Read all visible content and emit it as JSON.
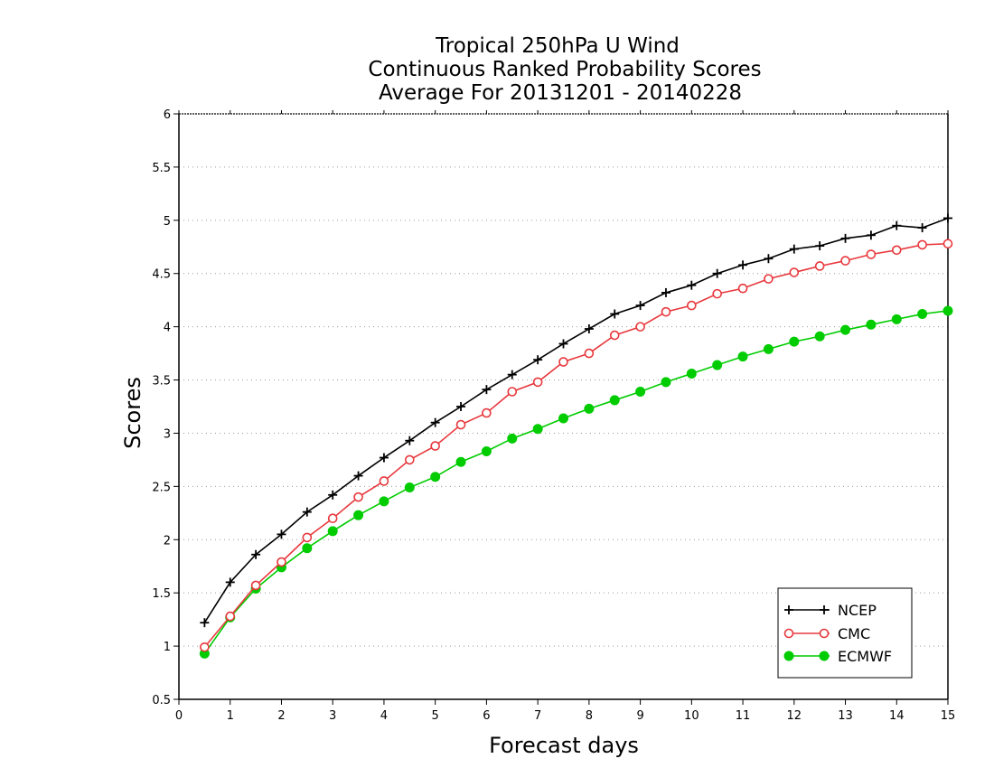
{
  "chart_data": {
    "type": "line",
    "title_lines": [
      "Tropical 250hPa U Wind",
      "Continuous Ranked Probability Scores",
      "Average For 20131201 - 20140228"
    ],
    "xlabel": "Forecast days",
    "ylabel": "Scores",
    "xlim": [
      0,
      15
    ],
    "ylim": [
      0.5,
      6
    ],
    "xticks": [
      0,
      1,
      2,
      3,
      4,
      5,
      6,
      7,
      8,
      9,
      10,
      11,
      12,
      13,
      14,
      15
    ],
    "yticks": [
      0.5,
      1,
      1.5,
      2,
      2.5,
      3,
      3.5,
      4,
      4.5,
      5,
      5.5,
      6
    ],
    "ytick_labels": [
      "0.5",
      "1",
      "1.5",
      "2",
      "2.5",
      "3",
      "3.5",
      "4",
      "4.5",
      "5",
      "5.5",
      "6"
    ],
    "grid": "horizontal dotted",
    "legend_position": "bottom-right",
    "x": [
      0.5,
      1,
      1.5,
      2,
      2.5,
      3,
      3.5,
      4,
      4.5,
      5,
      5.5,
      6,
      6.5,
      7,
      7.5,
      8,
      8.5,
      9,
      9.5,
      10,
      10.5,
      11,
      11.5,
      12,
      12.5,
      13,
      13.5,
      14,
      14.5,
      15
    ],
    "series": [
      {
        "name": "NCEP",
        "color": "#000000",
        "marker": "plus",
        "values": [
          1.22,
          1.6,
          1.86,
          2.05,
          2.26,
          2.42,
          2.6,
          2.77,
          2.93,
          3.1,
          3.25,
          3.41,
          3.55,
          3.69,
          3.84,
          3.98,
          4.12,
          4.2,
          4.32,
          4.39,
          4.5,
          4.58,
          4.64,
          4.73,
          4.76,
          4.83,
          4.86,
          4.95,
          4.93,
          5.02
        ]
      },
      {
        "name": "CMC",
        "color": "#e8383d",
        "marker": "open-circle",
        "values": [
          0.99,
          1.28,
          1.57,
          1.79,
          2.02,
          2.2,
          2.4,
          2.55,
          2.75,
          2.88,
          3.08,
          3.19,
          3.39,
          3.48,
          3.67,
          3.75,
          3.92,
          4.0,
          4.14,
          4.2,
          4.31,
          4.36,
          4.45,
          4.51,
          4.57,
          4.62,
          4.68,
          4.72,
          4.77,
          4.78
        ]
      },
      {
        "name": "ECMWF",
        "color": "#00cc00",
        "marker": "filled-circle",
        "values": [
          0.93,
          1.27,
          1.54,
          1.74,
          1.92,
          2.08,
          2.23,
          2.36,
          2.49,
          2.59,
          2.73,
          2.83,
          2.95,
          3.04,
          3.14,
          3.23,
          3.31,
          3.39,
          3.48,
          3.56,
          3.64,
          3.72,
          3.79,
          3.86,
          3.91,
          3.97,
          4.02,
          4.07,
          4.12,
          4.15
        ]
      }
    ]
  }
}
